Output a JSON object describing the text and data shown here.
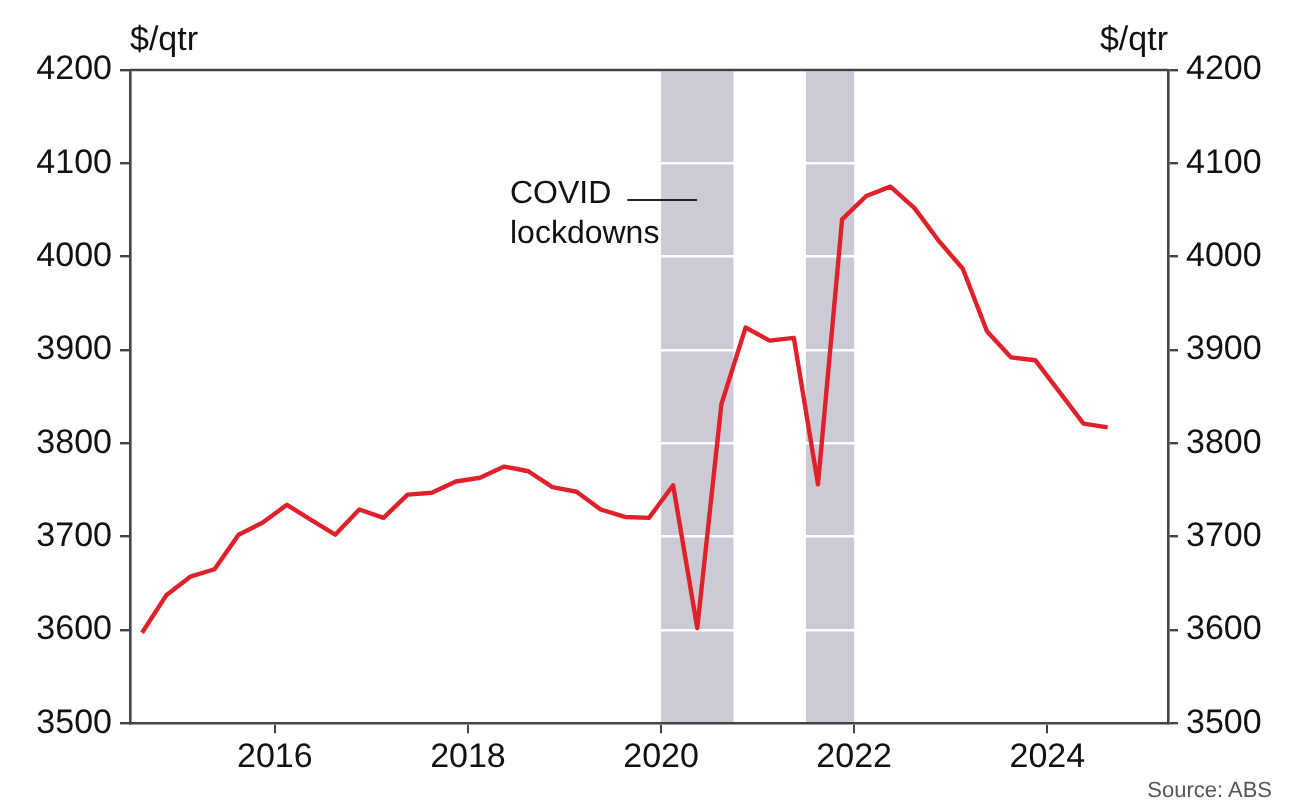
{
  "chart_data": {
    "type": "line",
    "ylabel": "$/qtr",
    "y2label": "$/qtr",
    "x": [
      2014.625,
      2014.875,
      2015.125,
      2015.375,
      2015.625,
      2015.875,
      2016.125,
      2016.375,
      2016.625,
      2016.875,
      2017.125,
      2017.375,
      2017.625,
      2017.875,
      2018.125,
      2018.375,
      2018.625,
      2018.875,
      2019.125,
      2019.375,
      2019.625,
      2019.875,
      2020.125,
      2020.375,
      2020.625,
      2020.875,
      2021.125,
      2021.375,
      2021.625,
      2021.875,
      2022.125,
      2022.375,
      2022.625,
      2022.875,
      2023.125,
      2023.375,
      2023.625,
      2023.875,
      2024.125,
      2024.375,
      2024.625
    ],
    "series": [
      {
        "color": "#e0202a",
        "values": [
          3597,
          3637,
          3657,
          3665,
          3702,
          3715,
          3734,
          3718,
          3702,
          3729,
          3720,
          3745,
          3747,
          3759,
          3763,
          3775,
          3770,
          3753,
          3748,
          3729,
          3721,
          3720,
          3755,
          3602,
          3842,
          3924,
          3910,
          3913,
          3756,
          4040,
          4065,
          4075,
          4052,
          4017,
          3987,
          3920,
          3892,
          3889,
          3855,
          3821,
          3817
        ]
      }
    ],
    "xlim": [
      2014.5,
      2025.25
    ],
    "xticks": [
      2016,
      2018,
      2020,
      2022,
      2024
    ],
    "ylim": [
      3500,
      4200
    ],
    "yticks": [
      3500,
      3600,
      3700,
      3800,
      3900,
      4000,
      4100,
      4200
    ],
    "y2lim": [
      3500,
      4200
    ],
    "y2ticks": [
      3500,
      3600,
      3700,
      3800,
      3900,
      4000,
      4100,
      4200
    ],
    "bands": [
      {
        "axis": "x",
        "from": 2020,
        "to": 2020.75,
        "color": "#cbcbd6"
      },
      {
        "axis": "x",
        "from": 2021.5,
        "to": 2022,
        "color": "#cbcbd6"
      }
    ],
    "annotations": [
      "COVID lockdowns",
      "Source: ABS"
    ],
    "grid": "y",
    "legend": false,
    "marker": "none",
    "line_style": "solid"
  }
}
